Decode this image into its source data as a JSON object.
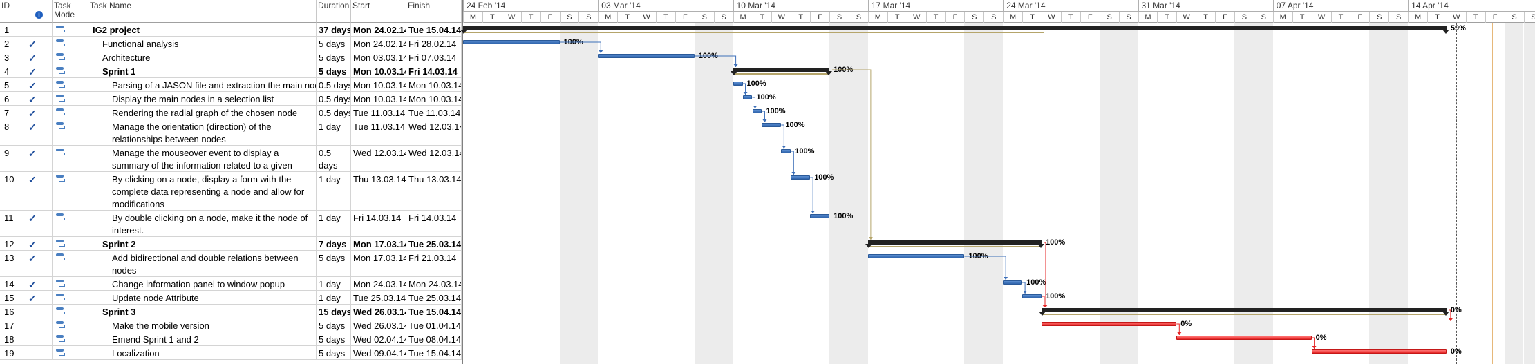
{
  "headers": {
    "id": "ID",
    "info_icon": "info-icon",
    "task_mode": "Task Mode",
    "task_name": "Task Name",
    "duration": "Duration",
    "start": "Start",
    "finish": "Finish"
  },
  "timeline": {
    "weeks": [
      "24 Feb '14",
      "03 Mar '14",
      "10 Mar '14",
      "17 Mar '14",
      "24 Mar '14",
      "31 Mar '14",
      "07 Apr '14",
      "14 Apr '14"
    ],
    "day_letters": [
      "M",
      "T",
      "W",
      "T",
      "F",
      "S",
      "S"
    ]
  },
  "tasks": [
    {
      "id": "1",
      "name": "IG2 project",
      "duration": "37 days",
      "start": "Mon 24.02.14",
      "finish": "Tue 15.04.14",
      "summary": true,
      "check": false,
      "pct": "59%"
    },
    {
      "id": "2",
      "name": "Functional analysis",
      "duration": "5 days",
      "start": "Mon 24.02.14",
      "finish": "Fri 28.02.14",
      "check": true,
      "pct": "100%"
    },
    {
      "id": "3",
      "name": "Architecture",
      "duration": "5 days",
      "start": "Mon 03.03.14",
      "finish": "Fri 07.03.14",
      "check": true,
      "pct": "100%"
    },
    {
      "id": "4",
      "name": "Sprint 1",
      "duration": "5 days",
      "start": "Mon 10.03.14",
      "finish": "Fri 14.03.14",
      "summary": true,
      "check": true,
      "pct": "100%"
    },
    {
      "id": "5",
      "name": "Parsing of a JASON file and extraction the main nodes",
      "duration": "0.5 days",
      "start": "Mon 10.03.14",
      "finish": "Mon 10.03.14",
      "check": true,
      "pct": "100%"
    },
    {
      "id": "6",
      "name": "Display the main nodes in a selection list",
      "duration": "0.5 days",
      "start": "Mon 10.03.14",
      "finish": "Mon 10.03.14",
      "check": true,
      "pct": "100%"
    },
    {
      "id": "7",
      "name": "Rendering the radial graph of the chosen node",
      "duration": "0.5 days",
      "start": "Tue 11.03.14",
      "finish": "Tue 11.03.14",
      "check": true,
      "pct": "100%"
    },
    {
      "id": "8",
      "name": "Manage the orientation (direction) of the relationships between nodes",
      "duration": "1 day",
      "start": "Tue 11.03.14",
      "finish": "Wed 12.03.14",
      "check": true,
      "pct": "100%"
    },
    {
      "id": "9",
      "name": "Manage the mouseover event to display a summary of the information related to a given",
      "duration": "0.5 days",
      "start": "Wed 12.03.14",
      "finish": "Wed 12.03.14",
      "check": true,
      "pct": "100%"
    },
    {
      "id": "10",
      "name": "By clicking on a node, display a form with the complete data representing a node and allow for modifications",
      "duration": "1 day",
      "start": "Thu 13.03.14",
      "finish": "Thu 13.03.14",
      "check": true,
      "pct": "100%"
    },
    {
      "id": "11",
      "name": "By double clicking on a node, make it the node of interest.",
      "duration": "1 day",
      "start": "Fri 14.03.14",
      "finish": "Fri 14.03.14",
      "check": true,
      "pct": "100%"
    },
    {
      "id": "12",
      "name": "Sprint 2",
      "duration": "7 days",
      "start": "Mon 17.03.14",
      "finish": "Tue 25.03.14",
      "summary": true,
      "check": true,
      "pct": "100%"
    },
    {
      "id": "13",
      "name": "Add bidirectional and double relations between nodes",
      "duration": "5 days",
      "start": "Mon 17.03.14",
      "finish": "Fri 21.03.14",
      "check": true,
      "pct": "100%"
    },
    {
      "id": "14",
      "name": "Change information panel to window popup",
      "duration": "1 day",
      "start": "Mon 24.03.14",
      "finish": "Mon 24.03.14",
      "check": true,
      "pct": "100%"
    },
    {
      "id": "15",
      "name": "Update node Attribute",
      "duration": "1 day",
      "start": "Tue 25.03.14",
      "finish": "Tue 25.03.14",
      "check": true,
      "pct": "100%"
    },
    {
      "id": "16",
      "name": "Sprint 3",
      "duration": "15 days",
      "start": "Wed 26.03.14",
      "finish": "Tue 15.04.14",
      "summary": true,
      "check": false,
      "pct": "0%"
    },
    {
      "id": "17",
      "name": "Make the mobile version",
      "duration": "5 days",
      "start": "Wed 26.03.14",
      "finish": "Tue 01.04.14",
      "check": false,
      "pct": "0%"
    },
    {
      "id": "18",
      "name": "Emend Sprint 1 and 2",
      "duration": "5 days",
      "start": "Wed 02.04.14",
      "finish": "Tue 08.04.14",
      "check": false,
      "pct": "0%"
    },
    {
      "id": "19",
      "name": "Localization",
      "duration": "5 days",
      "start": "Wed 09.04.14",
      "finish": "Tue 15.04.14",
      "check": false,
      "pct": "0%"
    }
  ],
  "colors": {
    "bar": "#2f64ad",
    "critical": "#e52525",
    "summary": "#222222",
    "weekend": "#ececec"
  }
}
